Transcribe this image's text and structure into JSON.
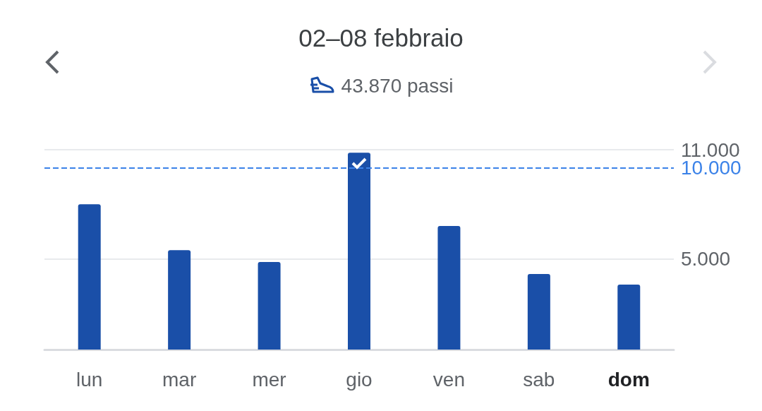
{
  "chart_data": {
    "type": "bar",
    "title": "02–08 febbraio",
    "subtitle": "43.870 passi",
    "categories": [
      "lun",
      "mar",
      "mer",
      "gio",
      "ven",
      "sab",
      "dom"
    ],
    "values": [
      8000,
      5470,
      4820,
      10830,
      6800,
      4160,
      3580
    ],
    "color": "#1a4fa8",
    "ylim": [
      0,
      11000
    ],
    "yticks": [
      {
        "value": 5000,
        "label": "5.000"
      },
      {
        "value": 11000,
        "label": "11.000"
      }
    ],
    "grid": "y",
    "ref_lines": [
      {
        "axis": "y",
        "value": 10000,
        "label": "10.000",
        "color": "#3b82e8",
        "line_style": "dashed"
      }
    ]
  }
}
